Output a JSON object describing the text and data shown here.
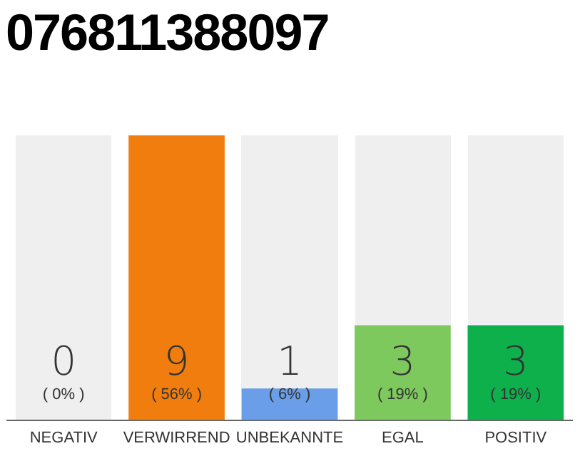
{
  "chart_data": {
    "type": "bar",
    "title": "076811388097",
    "categories": [
      "NEGATIV",
      "VERWIRREND",
      "UNBEKANNTE",
      "EGAL",
      "POSITIV"
    ],
    "values": [
      0,
      9,
      1,
      3,
      3
    ],
    "colors": [
      "#999999",
      "#f07d0e",
      "#6a9ee8",
      "#7ec95e",
      "#0db04b"
    ],
    "ylim": [
      0,
      9
    ],
    "tick_labels": "x",
    "grid": false,
    "legend": false,
    "data_labels": true,
    "annotations": [
      "( 0% )",
      "( 56% )",
      "( 6% )",
      "( 19% )",
      "( 19% )"
    ]
  }
}
